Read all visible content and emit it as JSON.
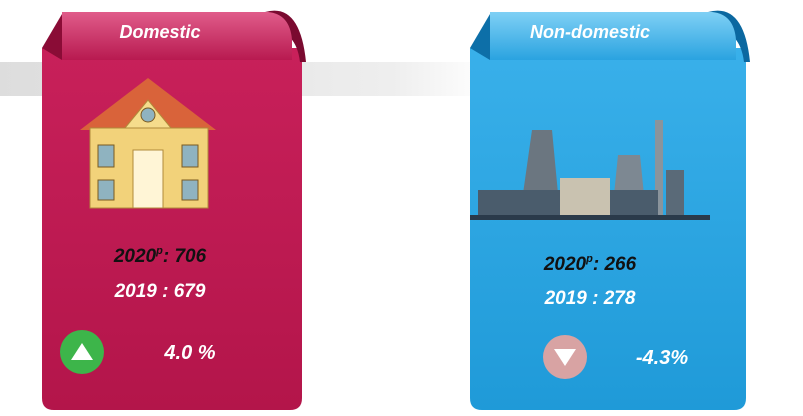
{
  "cards": [
    {
      "title": "Domestic",
      "current": {
        "year": "2020",
        "sup": "p",
        "rest": ": 706"
      },
      "previous": "2019 : 679",
      "change": "4.0 %",
      "direction": "up"
    },
    {
      "title": "Non-domestic",
      "current": {
        "year": "2020",
        "sup": "p",
        "rest": ": 266"
      },
      "previous": "2019 : 278",
      "change": "-4.3%",
      "direction": "down"
    }
  ]
}
